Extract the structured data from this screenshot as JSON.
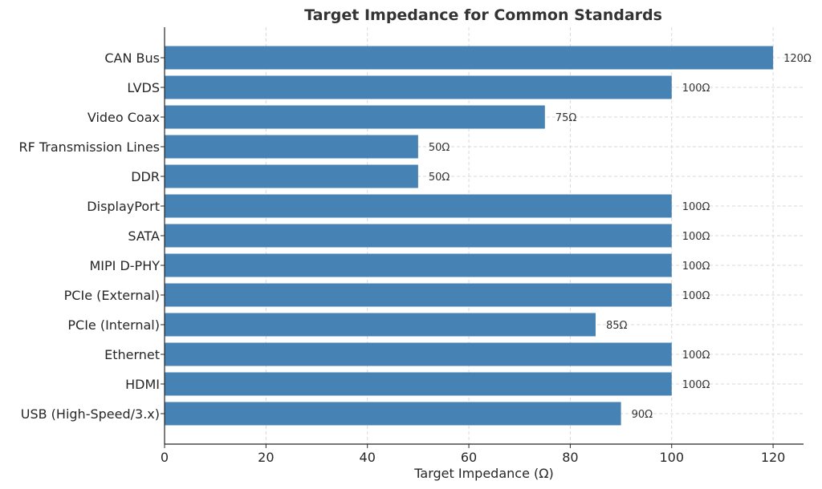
{
  "chart_data": {
    "type": "bar",
    "orientation": "horizontal",
    "title": "Target Impedance for Common Standards",
    "xlabel": "Target Impedance (Ω)",
    "ylabel": "",
    "categories": [
      "USB (High-Speed/3.x)",
      "HDMI",
      "Ethernet",
      "PCIe (Internal)",
      "PCIe (External)",
      "MIPI D-PHY",
      "SATA",
      "DisplayPort",
      "DDR",
      "RF Transmission Lines",
      "Video Coax",
      "LVDS",
      "CAN Bus"
    ],
    "values": [
      90,
      100,
      100,
      85,
      100,
      100,
      100,
      100,
      50,
      50,
      75,
      100,
      120
    ],
    "data_labels": [
      "90Ω",
      "100Ω",
      "100Ω",
      "85Ω",
      "100Ω",
      "100Ω",
      "100Ω",
      "100Ω",
      "50Ω",
      "50Ω",
      "75Ω",
      "100Ω",
      "120Ω"
    ],
    "xlim": [
      0,
      126
    ],
    "xticks": [
      0,
      20,
      40,
      60,
      80,
      100,
      120
    ],
    "grid": true,
    "bar_color": "#4682b4"
  }
}
